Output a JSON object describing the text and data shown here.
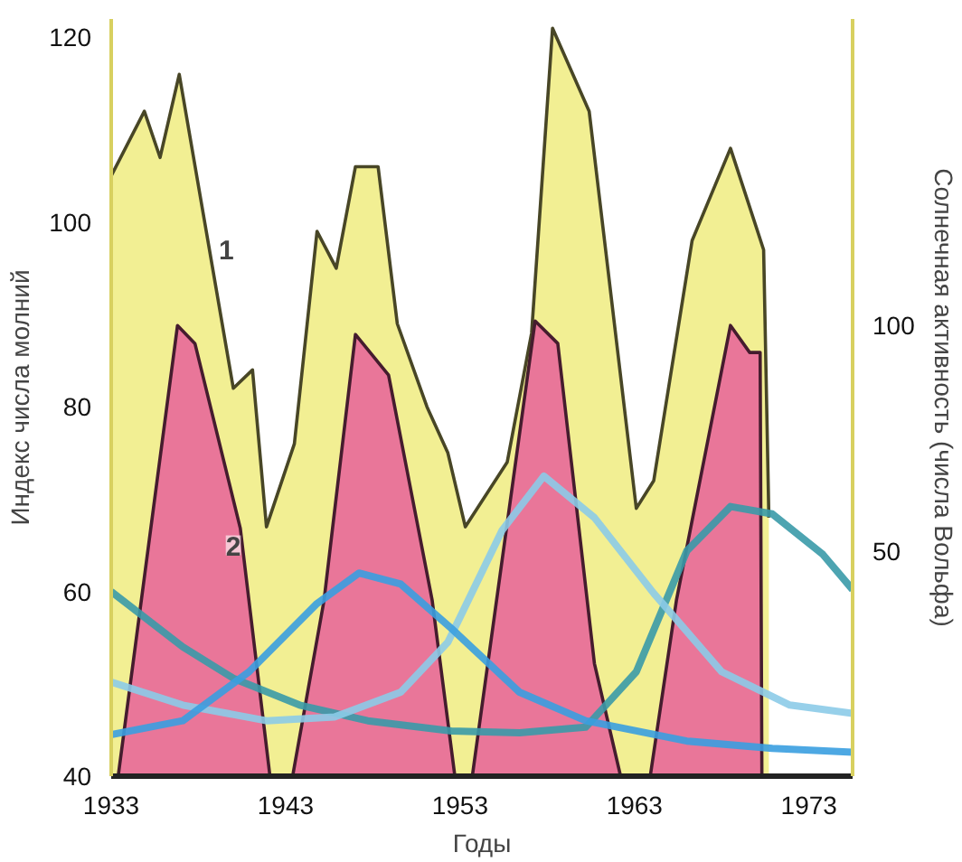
{
  "chart_data": {
    "type": "area",
    "xlabel": "Годы",
    "ylabel": "Индекс числа молний",
    "y2label": "Солнечная активность (числа Вольфа)",
    "xlim": [
      1933,
      1975.5
    ],
    "xticks": [
      1933,
      1943,
      1953,
      1963,
      1973
    ],
    "ylim": [
      40,
      122
    ],
    "yticks": [
      40,
      60,
      80,
      100,
      120
    ],
    "y2lim": [
      0,
      168
    ],
    "y2ticks": [
      50,
      100
    ],
    "series": [
      {
        "color": "#f0ec80",
        "x": [
          1933,
          1934.9,
          1935.8,
          1936.9,
          1940,
          1941.1,
          1941.9,
          1943.5,
          1944.8,
          1945.9,
          1947,
          1948.3,
          1949.4,
          1951.1,
          1952.3,
          1953.3,
          1955.7,
          1957.1,
          1958.3,
          1960.4,
          1963.1,
          1964.1,
          1966.3,
          1968.5,
          1970.4,
          1970.7
        ],
        "values": [
          105,
          112,
          107,
          116,
          82,
          84,
          67,
          76,
          99,
          95,
          106,
          106,
          89,
          80,
          75,
          67,
          74,
          88,
          121,
          112,
          69,
          72,
          98,
          108,
          97,
          68
        ]
      },
      {
        "axis": "y2",
        "color": "#e8609a",
        "x": [
          1933.4,
          1936.8,
          1937.8,
          1940.4,
          1942.1,
          1943.4,
          1945.2,
          1947,
          1948.9,
          1951.4,
          1952.7,
          1953.7,
          1957.3,
          1958.6,
          1960.7,
          1962.2,
          1963.9,
          1965.4,
          1968.5,
          1969.6,
          1970.2,
          1970.3
        ],
        "values": [
          0,
          100,
          96,
          55,
          0,
          0,
          39,
          98,
          89,
          39,
          0,
          0,
          101,
          96,
          25,
          0,
          0,
          39,
          100,
          94,
          94,
          0
        ]
      },
      {
        "type": "line",
        "color": "#3a9aa8",
        "x": [
          1933,
          1937.1,
          1940,
          1943.8,
          1947.7,
          1952.5,
          1956.4,
          1960.2,
          1963.1,
          1966,
          1968.5,
          1970.9,
          1973.8,
          1975.5
        ],
        "values": [
          60,
          54,
          50.6,
          47.7,
          46,
          44.9,
          44.7,
          45.3,
          51.3,
          64.4,
          69.2,
          68.4,
          64,
          60.2
        ]
      },
      {
        "type": "line",
        "color": "#8ccbe8",
        "x": [
          1933,
          1937.1,
          1941.9,
          1945.8,
          1949.6,
          1952.3,
          1955.4,
          1957.8,
          1960.7,
          1964.1,
          1968,
          1971.9,
          1975.5
        ],
        "values": [
          50.2,
          47.7,
          46,
          46.4,
          49.1,
          54.5,
          66.6,
          72.5,
          68,
          59.8,
          51.3,
          47.7,
          46.8
        ]
      },
      {
        "type": "line",
        "color": "#3a9ee0",
        "x": [
          1933,
          1937.1,
          1940.9,
          1944.8,
          1947.2,
          1949.6,
          1952.5,
          1956.4,
          1960.2,
          1966,
          1970.9,
          1975.5
        ],
        "values": [
          44.5,
          46,
          51.3,
          58.7,
          62,
          60.8,
          56,
          49.1,
          46,
          43.8,
          43,
          42.6
        ]
      }
    ],
    "annotations": [
      {
        "text": "1",
        "x": 1939.6,
        "y": 97
      },
      {
        "text": "2",
        "x": 1940,
        "y": 65
      }
    ]
  }
}
